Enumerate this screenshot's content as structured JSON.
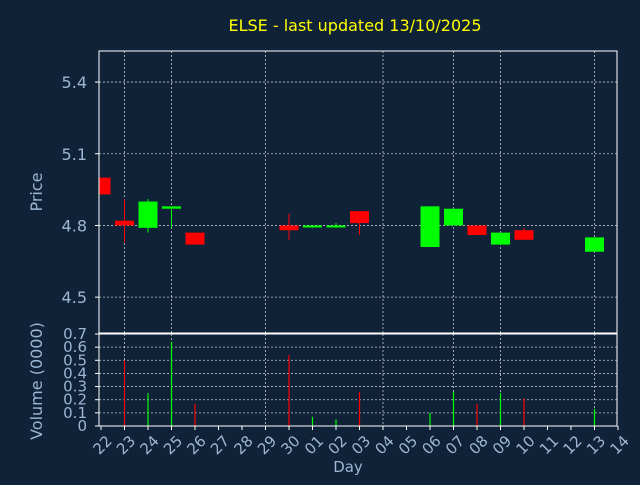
{
  "chart_data": {
    "type": "candlestick",
    "title": "ELSE - last updated 13/10/2025",
    "colors": {
      "background": "#0f2237",
      "title": "#ffff00",
      "axis_text": "#9cb6d4",
      "frame": "#ffffff",
      "grid": "#ffffff",
      "up": "#00ff00",
      "down": "#ff0000"
    },
    "price_panel": {
      "ylabel": "Price",
      "ylim": [
        4.35,
        5.53
      ],
      "yticks": [
        "4.5",
        "4.8",
        "5.1",
        "5.4"
      ],
      "grid": true
    },
    "volume_panel": {
      "ylabel": "Volume (0000)",
      "ylim": [
        0,
        0.7
      ],
      "yticks": [
        "0",
        "0.1",
        "0.2",
        "0.3",
        "0.4",
        "0.5",
        "0.6",
        "0.7"
      ],
      "grid": true
    },
    "xlabel": "Day",
    "x_ticks": [
      "22",
      "23",
      "24",
      "25",
      "26",
      "27",
      "28",
      "29",
      "30",
      "01",
      "02",
      "03",
      "04",
      "05",
      "06",
      "07",
      "08",
      "09",
      "10",
      "11",
      "12",
      "13",
      "14"
    ],
    "candles": [
      {
        "day": "22",
        "open": 5.0,
        "high": 5.0,
        "low": 4.93,
        "close": 4.93,
        "volume": 0.0,
        "dir": "down"
      },
      {
        "day": "23",
        "open": 4.82,
        "high": 4.91,
        "low": 4.73,
        "close": 4.8,
        "volume": 0.5,
        "dir": "down"
      },
      {
        "day": "24",
        "open": 4.79,
        "high": 4.91,
        "low": 4.77,
        "close": 4.9,
        "volume": 0.25,
        "dir": "up"
      },
      {
        "day": "25",
        "open": 4.87,
        "high": 4.88,
        "low": 4.79,
        "close": 4.88,
        "volume": 0.64,
        "dir": "up"
      },
      {
        "day": "26",
        "open": 4.77,
        "high": 4.77,
        "low": 4.72,
        "close": 4.72,
        "volume": 0.17,
        "dir": "down"
      },
      {
        "day": "30",
        "open": 4.8,
        "high": 4.85,
        "low": 4.74,
        "close": 4.78,
        "volume": 0.54,
        "dir": "down"
      },
      {
        "day": "01",
        "open": 4.8,
        "high": 4.8,
        "low": 4.79,
        "close": 4.8,
        "volume": 0.07,
        "dir": "up"
      },
      {
        "day": "02",
        "open": 4.8,
        "high": 4.81,
        "low": 4.79,
        "close": 4.8,
        "volume": 0.05,
        "dir": "up"
      },
      {
        "day": "03",
        "open": 4.86,
        "high": 4.86,
        "low": 4.76,
        "close": 4.81,
        "volume": 0.26,
        "dir": "down"
      },
      {
        "day": "06",
        "open": 4.71,
        "high": 4.88,
        "low": 4.71,
        "close": 4.88,
        "volume": 0.1,
        "dir": "up"
      },
      {
        "day": "07",
        "open": 4.8,
        "high": 4.87,
        "low": 4.8,
        "close": 4.87,
        "volume": 0.26,
        "dir": "up"
      },
      {
        "day": "08",
        "open": 4.8,
        "high": 4.8,
        "low": 4.76,
        "close": 4.76,
        "volume": 0.17,
        "dir": "down"
      },
      {
        "day": "09",
        "open": 4.72,
        "high": 4.77,
        "low": 4.72,
        "close": 4.77,
        "volume": 0.25,
        "dir": "up"
      },
      {
        "day": "10",
        "open": 4.78,
        "high": 4.79,
        "low": 4.74,
        "close": 4.74,
        "volume": 0.21,
        "dir": "down"
      },
      {
        "day": "13",
        "open": 4.69,
        "high": 4.75,
        "low": 4.69,
        "close": 4.75,
        "volume": 0.13,
        "dir": "up"
      }
    ]
  }
}
